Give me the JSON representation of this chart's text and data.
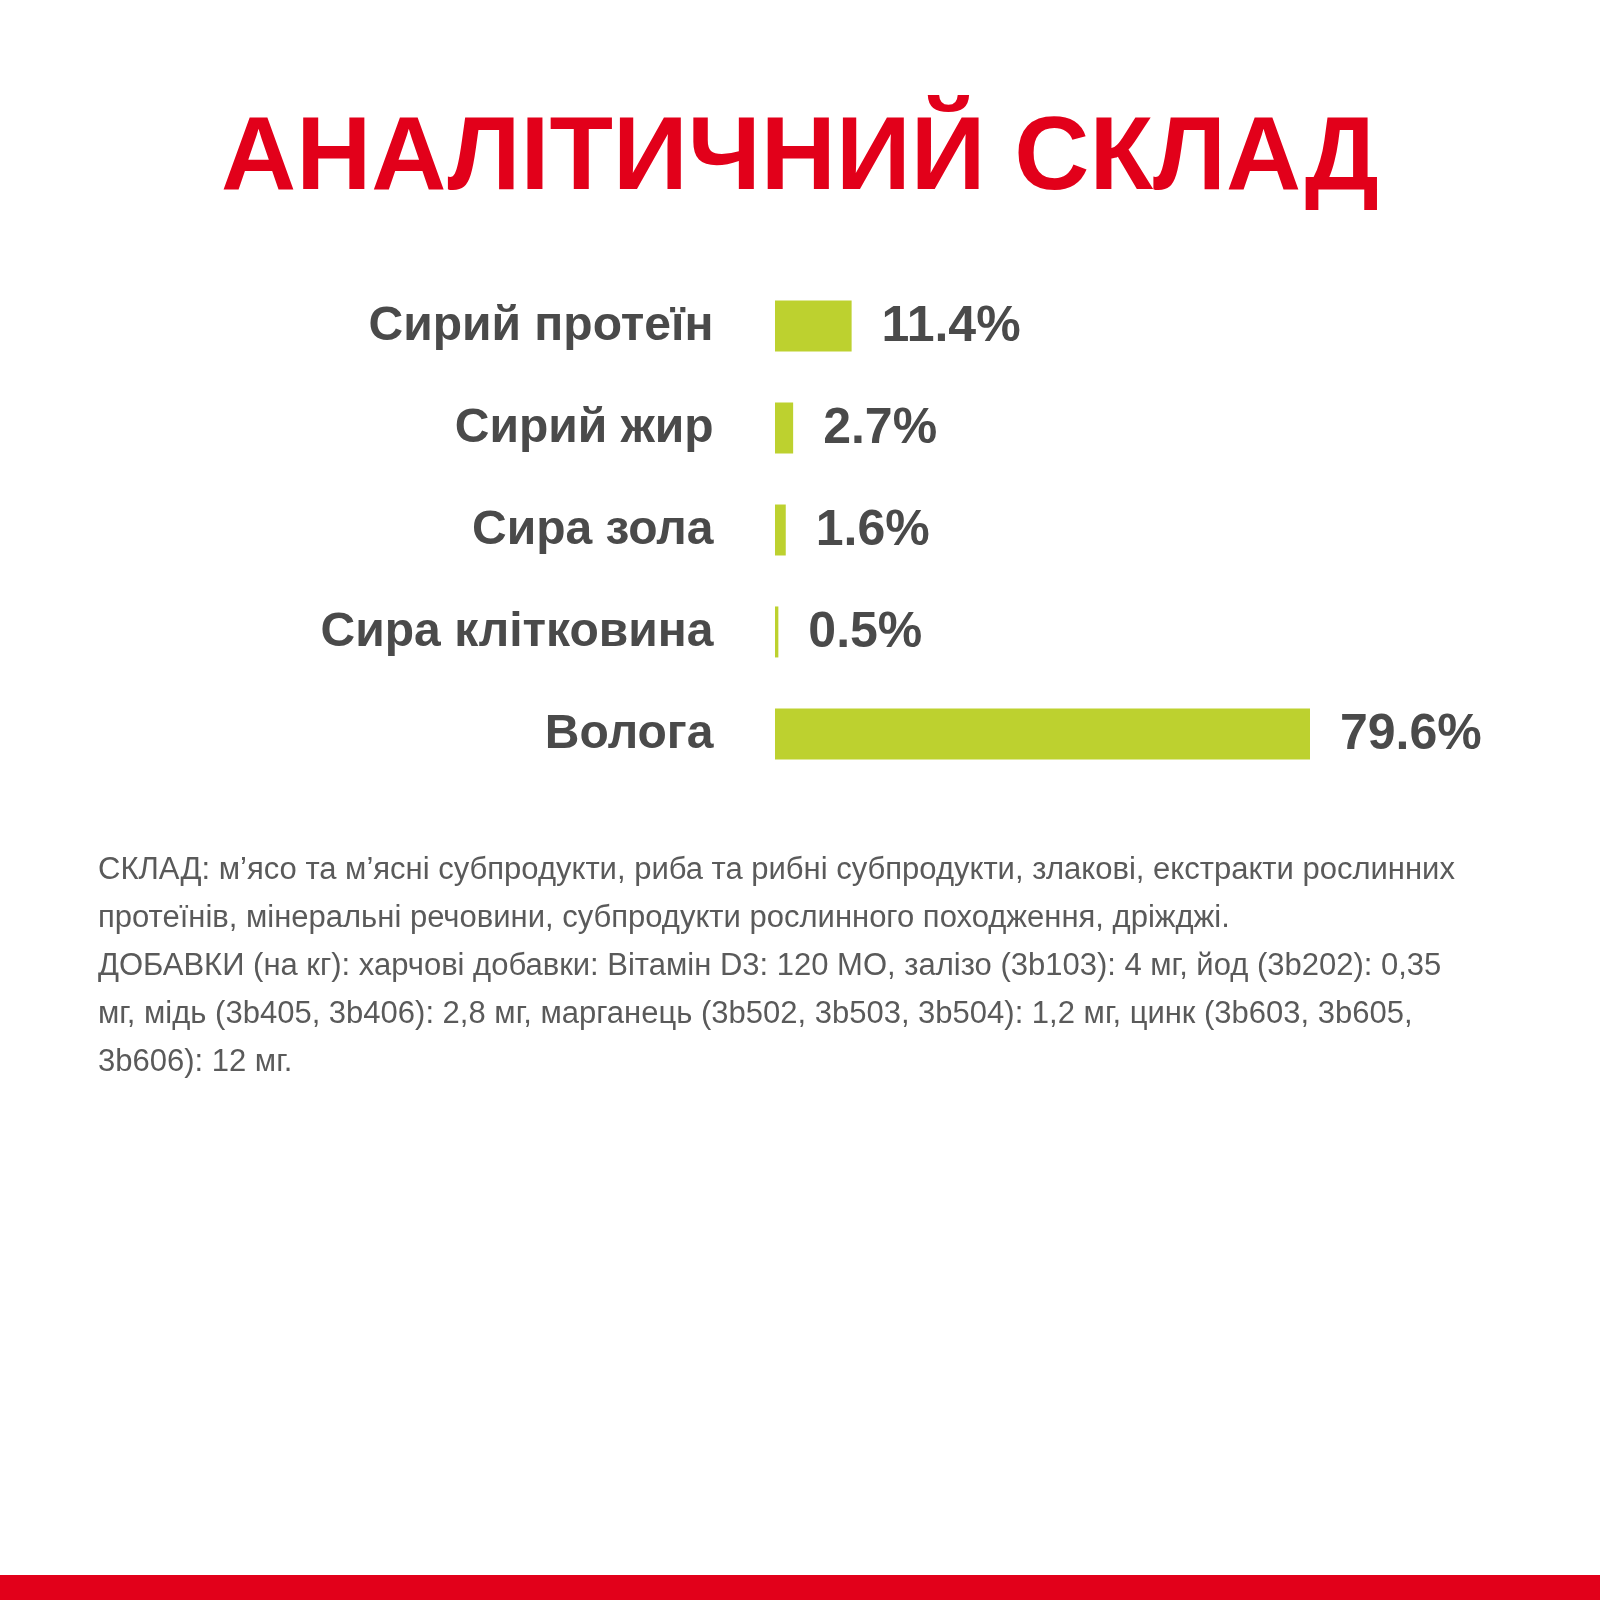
{
  "chart_data": {
    "type": "bar",
    "orientation": "horizontal",
    "title": "АНАЛІТИЧНИЙ СКЛАД",
    "categories": [
      "Сирий протеїн",
      "Сирий жир",
      "Сира зола",
      "Сира клітковина",
      "Волога"
    ],
    "values": [
      11.4,
      2.7,
      1.6,
      0.5,
      79.6
    ],
    "value_labels": [
      "11.4%",
      "2.7%",
      "1.6%",
      "0.5%",
      "79.6%"
    ],
    "color": "#bdd12f",
    "annotations": [
      "СКЛАД: м’ясо та м’ясні субпродукти, риба та рибні субпродукти, злакові, екстракти рослинних протеїнів, мінеральні речовини, субпродукти рослинного походження, дріжджі.",
      "ДОБАВКИ (на кг): харчові добавки: Вітамін D3: 120 МО, залізо (3b103): 4 мг, йод (3b202): 0,35 мг, мідь (3b405, 3b406): 2,8 мг, марганець (3b502, 3b503, 3b504): 1,2 мг, цинк (3b603, 3b605, 3b606): 12 мг."
    ]
  }
}
